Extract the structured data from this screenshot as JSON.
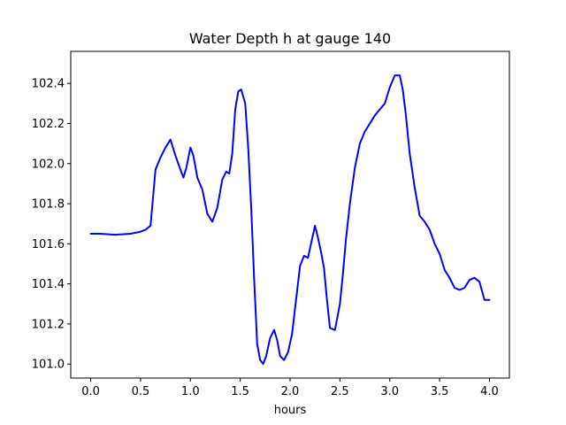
{
  "chart_data": {
    "type": "line",
    "title": "Water Depth h at gauge 140",
    "xlabel": "hours",
    "ylabel": "",
    "xlim": [
      -0.2,
      4.2
    ],
    "ylim": [
      100.93,
      102.56
    ],
    "xticks": [
      0.0,
      0.5,
      1.0,
      1.5,
      2.0,
      2.5,
      3.0,
      3.5,
      4.0
    ],
    "xtick_labels": [
      "0.0",
      "0.5",
      "1.0",
      "1.5",
      "2.0",
      "2.5",
      "3.0",
      "3.5",
      "4.0"
    ],
    "yticks": [
      101.0,
      101.2,
      101.4,
      101.6,
      101.8,
      102.0,
      102.2,
      102.4
    ],
    "ytick_labels": [
      "101.0",
      "101.2",
      "101.4",
      "101.6",
      "101.8",
      "102.0",
      "102.2",
      "102.4"
    ],
    "grid": false,
    "legend": "none",
    "series": [
      {
        "color": "#0000ff",
        "x": [
          0.0,
          0.1,
          0.25,
          0.4,
          0.5,
          0.55,
          0.6,
          0.62,
          0.65,
          0.7,
          0.75,
          0.8,
          0.85,
          0.9,
          0.93,
          0.96,
          1.0,
          1.03,
          1.07,
          1.12,
          1.17,
          1.22,
          1.27,
          1.32,
          1.36,
          1.39,
          1.42,
          1.45,
          1.48,
          1.51,
          1.55,
          1.58,
          1.61,
          1.64,
          1.67,
          1.7,
          1.73,
          1.76,
          1.8,
          1.84,
          1.87,
          1.9,
          1.94,
          1.98,
          2.02,
          2.06,
          2.1,
          2.14,
          2.18,
          2.21,
          2.25,
          2.28,
          2.31,
          2.34,
          2.37,
          2.4,
          2.45,
          2.5,
          2.53,
          2.56,
          2.6,
          2.65,
          2.7,
          2.75,
          2.8,
          2.85,
          2.9,
          2.95,
          3.0,
          3.05,
          3.1,
          3.13,
          3.16,
          3.2,
          3.25,
          3.3,
          3.35,
          3.4,
          3.45,
          3.5,
          3.55,
          3.6,
          3.65,
          3.7,
          3.75,
          3.8,
          3.85,
          3.9,
          3.95,
          4.0
        ],
        "y": [
          101.65,
          101.65,
          101.645,
          101.65,
          101.66,
          101.67,
          101.69,
          101.8,
          101.97,
          102.03,
          102.08,
          102.12,
          102.04,
          101.97,
          101.93,
          101.98,
          102.08,
          102.04,
          101.93,
          101.87,
          101.75,
          101.71,
          101.78,
          101.92,
          101.96,
          101.95,
          102.05,
          102.27,
          102.36,
          102.37,
          102.3,
          102.08,
          101.78,
          101.42,
          101.1,
          101.02,
          101.0,
          101.04,
          101.13,
          101.17,
          101.12,
          101.04,
          101.02,
          101.06,
          101.15,
          101.32,
          101.49,
          101.54,
          101.53,
          101.6,
          101.69,
          101.63,
          101.56,
          101.48,
          101.32,
          101.18,
          101.17,
          101.3,
          101.45,
          101.62,
          101.8,
          101.98,
          102.1,
          102.16,
          102.2,
          102.24,
          102.27,
          102.3,
          102.38,
          102.44,
          102.44,
          102.37,
          102.25,
          102.05,
          101.88,
          101.74,
          101.71,
          101.67,
          101.6,
          101.55,
          101.47,
          101.43,
          101.38,
          101.37,
          101.38,
          101.42,
          101.43,
          101.41,
          101.32,
          101.32
        ]
      }
    ]
  }
}
